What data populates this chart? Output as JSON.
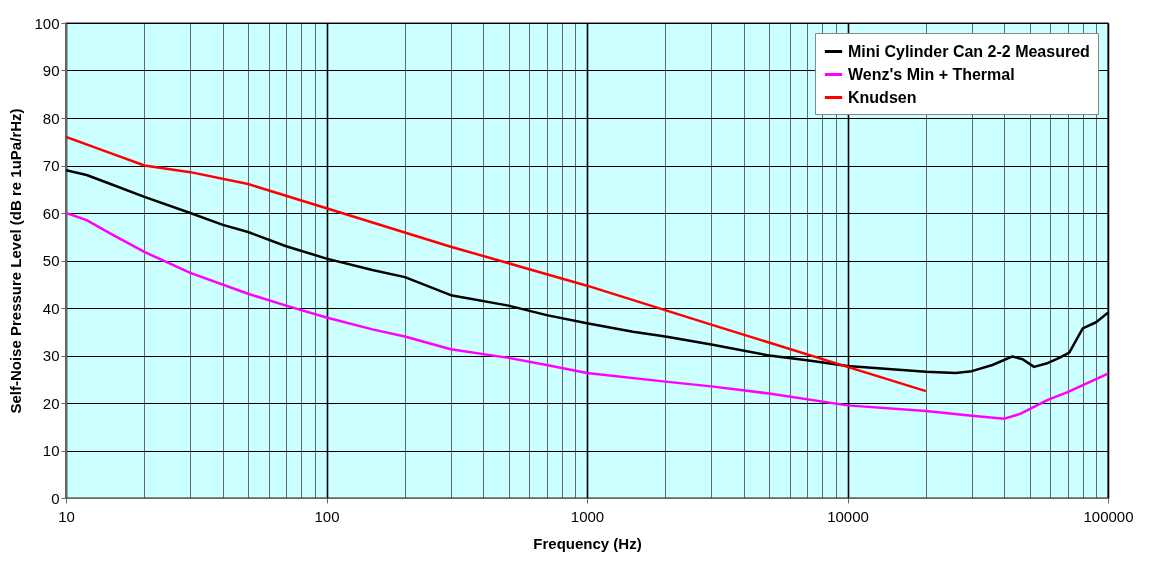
{
  "chart_data": {
    "type": "line",
    "xlabel": "Frequency (Hz)",
    "ylabel": "Self-Noise Pressure Level (dB re 1uPa/rHz)",
    "log": "x",
    "xlim": [
      10,
      100000
    ],
    "xticks": [
      10,
      100,
      1000,
      10000,
      100000
    ],
    "ylim": [
      0,
      100
    ],
    "yticks": [
      0,
      10,
      20,
      30,
      40,
      50,
      60,
      70,
      80,
      90,
      100
    ],
    "grid": true,
    "legend": "top right",
    "line_style": "solid",
    "marker": "none",
    "series": [
      {
        "name": "Mini Cylinder Can 2-2 Measured",
        "color": "#000000",
        "x": [
          10,
          12,
          15,
          20,
          30,
          40,
          50,
          70,
          100,
          150,
          200,
          300,
          500,
          700,
          1000,
          1500,
          2000,
          3000,
          5000,
          7000,
          10000,
          20000,
          26000,
          30000,
          36000,
          43000,
          47000,
          52000,
          58000,
          65000,
          71000,
          80000,
          90000,
          100000
        ],
        "values": [
          69,
          68,
          66,
          63.4,
          60,
          57.5,
          56,
          53,
          50.4,
          48,
          46.5,
          42.7,
          40.5,
          38.5,
          36.8,
          35,
          34,
          32.3,
          30,
          29,
          27.8,
          26.6,
          26.3,
          26.7,
          28,
          29.8,
          29.2,
          27.6,
          28.3,
          29.5,
          30.6,
          35.7,
          37,
          39
        ]
      },
      {
        "name": "Wenz's Min + Thermal",
        "color": "#ff00ff",
        "x": [
          10,
          12,
          15,
          20,
          30,
          50,
          70,
          100,
          150,
          200,
          300,
          500,
          700,
          1000,
          2000,
          3000,
          5000,
          10000,
          20000,
          30000,
          40000,
          46000,
          59000,
          70000,
          100000
        ],
        "values": [
          60,
          58.5,
          55.5,
          51.8,
          47.4,
          43,
          40.5,
          38,
          35.5,
          34,
          31.3,
          29.5,
          28,
          26.3,
          24.5,
          23.5,
          22,
          19.5,
          18.3,
          17.3,
          16.7,
          17.7,
          20.7,
          22.3,
          26.2
        ]
      },
      {
        "name": "Knudsen",
        "color": "#ff0000",
        "x": [
          10,
          15,
          20,
          30,
          50,
          100,
          300,
          1000,
          3000,
          10000,
          20000
        ],
        "values": [
          76,
          72.5,
          70,
          68.6,
          66.1,
          61,
          52.9,
          44.7,
          36.5,
          27.6,
          22.5
        ]
      }
    ]
  }
}
